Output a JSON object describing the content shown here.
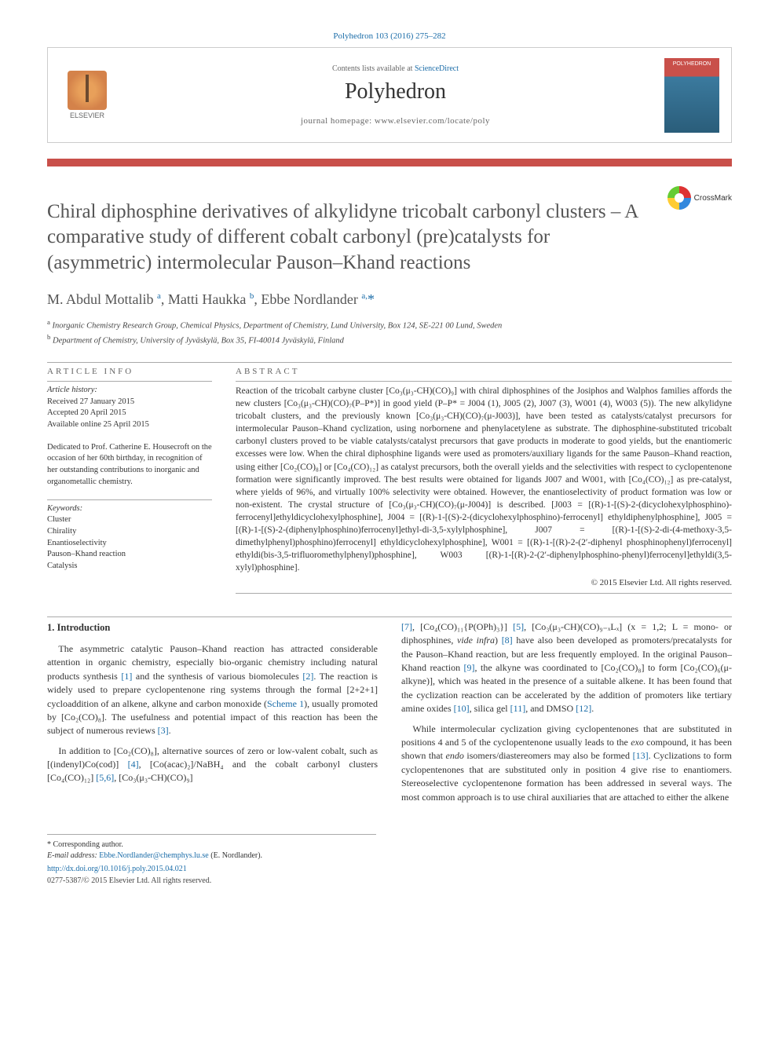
{
  "citation": "Polyhedron 103 (2016) 275–282",
  "header": {
    "contents_prefix": "Contents lists available at ",
    "contents_link": "ScienceDirect",
    "journal": "Polyhedron",
    "homepage_label": "journal homepage: www.elsevier.com/locate/poly",
    "elsevier": "ELSEVIER",
    "cover_label": "POLYHEDRON"
  },
  "crossmark": "CrossMark",
  "title": "Chiral diphosphine derivatives of alkylidyne tricobalt carbonyl clusters – A comparative study of different cobalt carbonyl (pre)catalysts for (asymmetric) intermolecular Pauson–Khand reactions",
  "authors_html": "M. Abdul Mottalib <sup>a</sup>, Matti Haukka <sup>b</sup>, Ebbe Nordlander <sup>a,</sup><span class='star'>*</span>",
  "affiliations": {
    "a": "Inorganic Chemistry Research Group, Chemical Physics, Department of Chemistry, Lund University, Box 124, SE-221 00 Lund, Sweden",
    "b": "Department of Chemistry, University of Jyväskylä, Box 35, FI-40014 Jyväskylä, Finland"
  },
  "info": {
    "label": "ARTICLE INFO",
    "history_title": "Article history:",
    "history": [
      "Received 27 January 2015",
      "Accepted 20 April 2015",
      "Available online 25 April 2015"
    ],
    "dedication": "Dedicated to Prof. Catherine E. Housecroft on the occasion of her 60th birthday, in recognition of her outstanding contributions to inorganic and organometallic chemistry.",
    "keywords_title": "Keywords:",
    "keywords": [
      "Cluster",
      "Chirality",
      "Enantioselectivity",
      "Pauson–Khand reaction",
      "Catalysis"
    ]
  },
  "abstract": {
    "label": "ABSTRACT",
    "text": "Reaction of the tricobalt carbyne cluster [Co₃(μ₃-CH)(CO)₉] with chiral diphosphines of the Josiphos and Walphos families affords the new clusters [Co₃(μ₃-CH)(CO)₇(P–P*)] in good yield (P–P* = J004 (1), J005 (2), J007 (3), W001 (4), W003 (5)). The new alkylidyne tricobalt clusters, and the previously known [Co₃(μ₃-CH)(CO)₇(μ-J003)], have been tested as catalysts/catalyst precursors for intermolecular Pauson–Khand cyclization, using norbornene and phenylacetylene as substrate. The diphosphine-substituted tricobalt carbonyl clusters proved to be viable catalysts/catalyst precursors that gave products in moderate to good yields, but the enantiomeric excesses were low. When the chiral diphosphine ligands were used as promoters/auxiliary ligands for the same Pauson–Khand reaction, using either [Co₂(CO)₈] or [Co₄(CO)₁₂] as catalyst precursors, both the overall yields and the selectivities with respect to cyclopentenone formation were significantly improved. The best results were obtained for ligands J007 and W001, with [Co₄(CO)₁₂] as pre-catalyst, where yields of 96%, and virtually 100% selectivity were obtained. However, the enantioselectivity of product formation was low or non-existent. The crystal structure of [Co₃(μ₃-CH)(CO)₇(μ-J004)] is described. [J003 = [(R)-1-[(S)-2-(dicyclohexylphosphino)-ferrocenyl]ethyldicyclohexylphosphine], J004 = [(R)-1-[(S)-2-(dicyclohexylphosphino)-ferrocenyl] ethyldiphenylphosphine], J005 = [(R)-1-[(S)-2-(diphenylphosphino)ferrocenyl]ethyl-di-3,5-xylylphosphine], J007 = [(R)-1-[(S)-2-di-(4-methoxy-3,5-dimethylphenyl)phosphino)ferrocenyl] ethyldicyclohexylphosphine], W001 = [(R)-1-[(R)-2-(2′-diphenyl phosphinophenyl)ferrocenyl] ethyldi(bis-3,5-trifluoromethylphenyl)phosphine], W003 [(R)-1-[(R)-2-(2′-diphenylphosphino-phenyl)ferrocenyl]ethyldi(3,5-xylyl)phosphine].",
    "copyright": "© 2015 Elsevier Ltd. All rights reserved."
  },
  "body": {
    "heading": "1. Introduction",
    "col1": [
      "The asymmetric catalytic Pauson–Khand reaction has attracted considerable attention in organic chemistry, especially bio-organic chemistry including natural products synthesis <a class='ref-link' href='#'>[1]</a> and the synthesis of various biomolecules <a class='ref-link' href='#'>[2]</a>. The reaction is widely used to prepare cyclopentenone ring systems through the formal [2+2+1] cycloaddition of an alkene, alkyne and carbon monoxide (<a class='ref-link' href='#'>Scheme 1</a>), usually promoted by [Co₂(CO)₈]. The usefulness and potential impact of this reaction has been the subject of numerous reviews <a class='ref-link' href='#'>[3]</a>.",
      "In addition to [Co₂(CO)₈], alternative sources of zero or low-valent cobalt, such as [(indenyl)Co(cod)] <a class='ref-link' href='#'>[4]</a>, [Co(acac)₂]/NaBH₄ and the cobalt carbonyl clusters [Co₄(CO)₁₂] <a class='ref-link' href='#'>[5,6]</a>, [Co₃(μ₃-CH)(CO)₉]"
    ],
    "col2": [
      "<a class='ref-link' href='#'>[7]</a>, [Co₄(CO)₁₁{P(OPh)₃}] <a class='ref-link' href='#'>[5]</a>, [Co₃(μ₃-CH)(CO)₉₋ₓLₓ] (x = 1,2; L = mono- or diphosphines, <i>vide infra</i>) <a class='ref-link' href='#'>[8]</a> have also been developed as promoters/precatalysts for the Pauson–Khand reaction, but are less frequently employed. In the original Pauson–Khand reaction <a class='ref-link' href='#'>[9]</a>, the alkyne was coordinated to [Co₂(CO)₈] to form [Co₂(CO)₆(μ-alkyne)], which was heated in the presence of a suitable alkene. It has been found that the cyclization reaction can be accelerated by the addition of promoters like tertiary amine oxides <a class='ref-link' href='#'>[10]</a>, silica gel <a class='ref-link' href='#'>[11]</a>, and DMSO <a class='ref-link' href='#'>[12]</a>.",
      "While intermolecular cyclization giving cyclopentenones that are substituted in positions 4 and 5 of the cyclopentenone usually leads to the <i>exo</i> compound, it has been shown that <i>endo</i> isomers/diastereomers may also be formed <a class='ref-link' href='#'>[13]</a>. Cyclizations to form cyclopentenones that are substituted only in position 4 give rise to enantiomers. Stereoselective cyclopentenone formation has been addressed in several ways. The most common approach is to use chiral auxiliaries that are attached to either the alkene"
    ]
  },
  "footnote": {
    "corresp_label": "* Corresponding author.",
    "email_label": "E-mail address:",
    "email": "Ebbe.Nordlander@chemphys.lu.se",
    "email_name": "(E. Nordlander).",
    "doi": "http://dx.doi.org/10.1016/j.poly.2015.04.021",
    "issn_line": "0277-5387/© 2015 Elsevier Ltd. All rights reserved."
  },
  "colors": {
    "accent": "#c9504a",
    "link": "#1a6ca8",
    "text": "#333333"
  }
}
